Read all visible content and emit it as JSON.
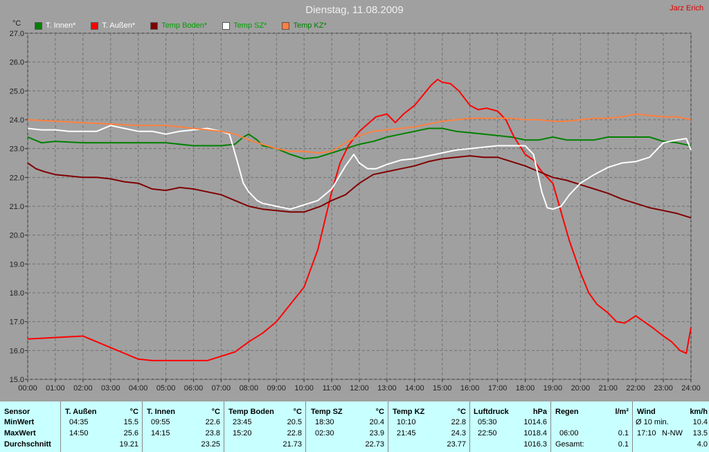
{
  "title": "Dienstag, 11.08.2009",
  "author": "Jarz Erich",
  "colors": {
    "background": "#a0a0a0",
    "plot_bg": "#a0a0a0",
    "grid": "#707070",
    "stats_bg": "#c8ffff"
  },
  "chart_data": {
    "type": "line",
    "ylabel": "°C",
    "ylim": [
      15.0,
      27.0
    ],
    "y_ticks": [
      "15.0",
      "16.0",
      "17.0",
      "18.0",
      "19.0",
      "20.0",
      "21.0",
      "22.0",
      "23.0",
      "24.0",
      "25.0",
      "26.0",
      "27.0"
    ],
    "x_ticks": [
      "00:00",
      "01:00",
      "02:00",
      "03:00",
      "04:00",
      "05:00",
      "06:00",
      "07:00",
      "08:00",
      "09:00",
      "10:00",
      "11:00",
      "12:00",
      "13:00",
      "14:00",
      "15:00",
      "16:00",
      "17:00",
      "18:00",
      "19:00",
      "20:00",
      "21:00",
      "22:00",
      "23:00",
      "24:00"
    ],
    "grid": true,
    "legend_position": "top-left",
    "series": [
      {
        "name": "T. Innen*",
        "color": "#008000",
        "x": [
          0,
          0.25,
          0.5,
          1,
          2,
          3,
          4,
          5,
          6,
          7,
          7.5,
          7.8,
          8,
          8.3,
          8.5,
          9,
          9.5,
          10,
          10.5,
          11,
          11.5,
          12,
          12.5,
          13,
          13.5,
          14,
          14.5,
          15,
          15.5,
          16,
          16.5,
          17,
          17.5,
          18,
          18.5,
          19,
          19.5,
          20,
          20.5,
          21,
          21.5,
          22,
          22.5,
          23,
          23.5,
          24
        ],
        "y": [
          23.4,
          23.3,
          23.2,
          23.25,
          23.2,
          23.2,
          23.2,
          23.2,
          23.1,
          23.1,
          23.15,
          23.4,
          23.5,
          23.3,
          23.1,
          23.0,
          22.8,
          22.65,
          22.7,
          22.85,
          23.0,
          23.15,
          23.25,
          23.4,
          23.5,
          23.6,
          23.7,
          23.7,
          23.6,
          23.55,
          23.5,
          23.45,
          23.4,
          23.3,
          23.3,
          23.4,
          23.3,
          23.3,
          23.3,
          23.4,
          23.4,
          23.4,
          23.4,
          23.25,
          23.2,
          23.1
        ]
      },
      {
        "name": "T. Außen*",
        "color": "#ff0000",
        "x": [
          0,
          1,
          2,
          2.5,
          3,
          3.5,
          4,
          4.5,
          5,
          5.5,
          6,
          6.5,
          7,
          7.5,
          8,
          8.5,
          9,
          9.5,
          10,
          10.5,
          11,
          11.3,
          11.6,
          12,
          12.3,
          12.6,
          13,
          13.3,
          13.6,
          14,
          14.3,
          14.6,
          14.83,
          15,
          15.3,
          15.6,
          16,
          16.3,
          16.6,
          17,
          17.3,
          17.6,
          18,
          18.3,
          18.6,
          19,
          19.3,
          19.6,
          20,
          20.3,
          20.6,
          21,
          21.3,
          21.6,
          22,
          22.3,
          22.6,
          23,
          23.3,
          23.6,
          23.83,
          24
        ],
        "y": [
          16.4,
          16.45,
          16.5,
          16.3,
          16.1,
          15.9,
          15.7,
          15.65,
          15.65,
          15.65,
          15.65,
          15.65,
          15.8,
          15.95,
          16.3,
          16.6,
          17.0,
          17.6,
          18.2,
          19.5,
          21.5,
          22.5,
          23.1,
          23.6,
          23.85,
          24.1,
          24.2,
          23.9,
          24.2,
          24.5,
          24.85,
          25.2,
          25.4,
          25.3,
          25.25,
          25.0,
          24.5,
          24.35,
          24.4,
          24.3,
          24.0,
          23.4,
          22.8,
          22.6,
          22.2,
          21.8,
          20.8,
          19.8,
          18.7,
          18.0,
          17.6,
          17.3,
          17.0,
          16.95,
          17.2,
          17.0,
          16.8,
          16.5,
          16.3,
          16.0,
          15.9,
          16.8
        ]
      },
      {
        "name": "Temp Boden*",
        "color": "#800000",
        "x": [
          0,
          0.3,
          0.6,
          1,
          1.5,
          2,
          2.5,
          3,
          3.5,
          4,
          4.5,
          5,
          5.5,
          6,
          6.5,
          7,
          7.5,
          8,
          8.5,
          9,
          9.5,
          10,
          10.3,
          10.6,
          11,
          11.5,
          12,
          12.5,
          13,
          13.5,
          14,
          14.5,
          15,
          15.5,
          16,
          16.5,
          17,
          17.5,
          18,
          18.5,
          19,
          19.5,
          20,
          20.5,
          21,
          21.5,
          22,
          22.5,
          23,
          23.5,
          24
        ],
        "y": [
          22.5,
          22.3,
          22.2,
          22.1,
          22.05,
          22.0,
          22.0,
          21.95,
          21.85,
          21.8,
          21.6,
          21.55,
          21.65,
          21.6,
          21.5,
          21.4,
          21.2,
          21.0,
          20.9,
          20.85,
          20.8,
          20.8,
          20.9,
          21.0,
          21.2,
          21.4,
          21.8,
          22.1,
          22.2,
          22.3,
          22.4,
          22.55,
          22.65,
          22.7,
          22.75,
          22.7,
          22.7,
          22.55,
          22.4,
          22.2,
          22.0,
          21.9,
          21.75,
          21.6,
          21.45,
          21.25,
          21.1,
          20.95,
          20.85,
          20.75,
          20.6
        ]
      },
      {
        "name": "Temp SZ*",
        "color": "#ffffff",
        "x": [
          0,
          0.5,
          1,
          1.5,
          2,
          2.5,
          3,
          3.5,
          4,
          4.5,
          5,
          5.5,
          6,
          6.5,
          7,
          7.3,
          7.6,
          7.8,
          8,
          8.3,
          8.5,
          9,
          9.5,
          10,
          10.5,
          11,
          11.5,
          11.8,
          12,
          12.3,
          12.6,
          13,
          13.5,
          14,
          14.5,
          15,
          15.5,
          16,
          16.5,
          17,
          17.5,
          18,
          18.3,
          18.6,
          18.8,
          19,
          19.3,
          19.6,
          20,
          20.5,
          21,
          21.5,
          22,
          22.5,
          23,
          23.5,
          23.83,
          24
        ],
        "y": [
          23.7,
          23.65,
          23.65,
          23.6,
          23.6,
          23.6,
          23.8,
          23.7,
          23.6,
          23.6,
          23.5,
          23.6,
          23.65,
          23.7,
          23.6,
          23.5,
          22.5,
          21.8,
          21.5,
          21.2,
          21.1,
          21.0,
          20.9,
          21.05,
          21.2,
          21.6,
          22.4,
          22.8,
          22.5,
          22.3,
          22.3,
          22.45,
          22.6,
          22.65,
          22.75,
          22.85,
          22.95,
          23.0,
          23.05,
          23.1,
          23.1,
          23.1,
          22.8,
          21.5,
          20.95,
          20.9,
          21.0,
          21.4,
          21.8,
          22.1,
          22.35,
          22.5,
          22.55,
          22.7,
          23.2,
          23.3,
          23.35,
          22.95
        ]
      },
      {
        "name": "Temp KZ*",
        "color": "#ff8040",
        "x": [
          0,
          1,
          2,
          3,
          4,
          5,
          6,
          6.5,
          7,
          7.5,
          8,
          8.5,
          9,
          9.5,
          10,
          10.5,
          11,
          11.5,
          12,
          12.5,
          13,
          13.5,
          14,
          14.5,
          15,
          15.5,
          16,
          16.5,
          17,
          17.5,
          18,
          18.5,
          19,
          19.5,
          20,
          20.5,
          21,
          21.5,
          22,
          22.5,
          23,
          23.5,
          24
        ],
        "y": [
          24.0,
          23.95,
          23.9,
          23.85,
          23.8,
          23.8,
          23.7,
          23.65,
          23.6,
          23.5,
          23.3,
          23.15,
          23.0,
          22.9,
          22.9,
          22.85,
          22.9,
          23.2,
          23.45,
          23.6,
          23.65,
          23.7,
          23.75,
          23.85,
          23.95,
          24.0,
          24.05,
          24.05,
          24.05,
          24.05,
          24.0,
          24.0,
          23.95,
          23.95,
          24.0,
          24.05,
          24.05,
          24.1,
          24.2,
          24.15,
          24.1,
          24.1,
          24.0
        ]
      }
    ]
  },
  "stats": {
    "rows": [
      "Sensor",
      "MinWert",
      "MaxWert",
      "Durchschnitt"
    ],
    "columns": [
      {
        "name": "T. Außen",
        "unit": "°C",
        "min_time": "04:35",
        "min": "15.5",
        "max_time": "14:50",
        "max": "25.6",
        "avg": "19.21"
      },
      {
        "name": "T. Innen",
        "unit": "°C",
        "min_time": "09:55",
        "min": "22.6",
        "max_time": "14:15",
        "max": "23.8",
        "avg": "23.25"
      },
      {
        "name": "Temp Boden",
        "unit": "°C",
        "min_time": "23:45",
        "min": "20.5",
        "max_time": "15:20",
        "max": "22.8",
        "avg": "21.73"
      },
      {
        "name": "Temp SZ",
        "unit": "°C",
        "min_time": "18:30",
        "min": "20.4",
        "max_time": "02:30",
        "max": "23.9",
        "avg": "22.73"
      },
      {
        "name": "Temp KZ",
        "unit": "°C",
        "min_time": "10:10",
        "min": "22.8",
        "max_time": "21:45",
        "max": "24.3",
        "avg": "23.77"
      },
      {
        "name": "Luftdruck",
        "unit": "hPa",
        "min_time": "05:30",
        "min": "1014.6",
        "max_time": "22:50",
        "max": "1018.4",
        "avg": "1016.3"
      }
    ],
    "rain": {
      "name": "Regen",
      "unit": "l/m²",
      "row1_time": "06:00",
      "row1": "0.1",
      "row2_label": "Gesamt:",
      "row2": "0.1"
    },
    "wind": {
      "name": "Wind",
      "unit": "km/h",
      "row0_label": "Ø 10 min.",
      "row0": "10.4",
      "row1_time": "17:10",
      "row1_dir": "N-NW",
      "row1": "13.5",
      "row2": "4.0"
    }
  }
}
